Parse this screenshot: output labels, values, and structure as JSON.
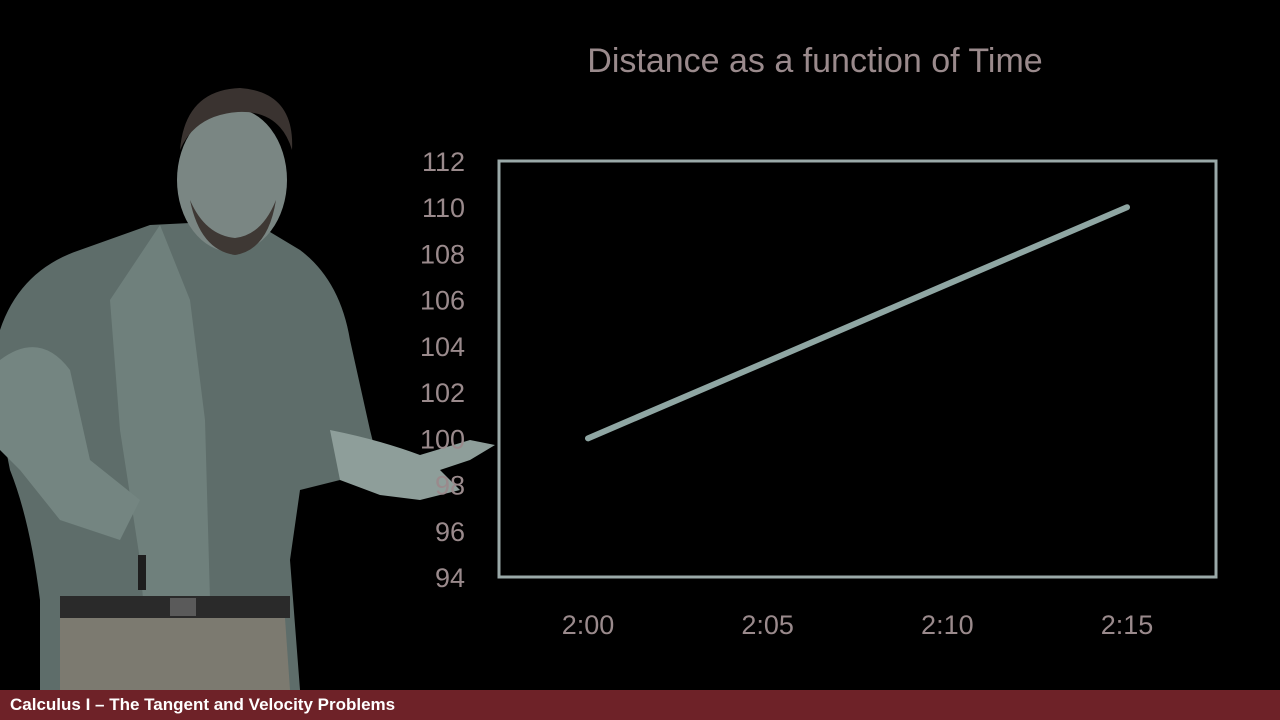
{
  "colors": {
    "background": "#000000",
    "text": "#9a8a8c",
    "plot_frame": "#9aa9a8",
    "line": "#8fa6a3",
    "footer_bar": "#6e2228",
    "footer_text": "#ffffff"
  },
  "footer": {
    "title": "Calculus I – The Tangent and Velocity Problems"
  },
  "presenter": {
    "description": "presenter-photo"
  },
  "chart_data": {
    "type": "line",
    "title": "Distance as a function of Time",
    "xlabel": "",
    "ylabel": "",
    "categories": [
      "2:00",
      "2:05",
      "2:10",
      "2:15"
    ],
    "x_ticks": [
      "2:00",
      "2:05",
      "2:10",
      "2:15"
    ],
    "y_ticks": [
      94,
      96,
      98,
      100,
      102,
      104,
      106,
      108,
      110,
      112
    ],
    "ylim": [
      94,
      112
    ],
    "series": [
      {
        "values": [
          100,
          103.33,
          106.67,
          110
        ]
      }
    ],
    "grid": false,
    "legend": "none"
  }
}
